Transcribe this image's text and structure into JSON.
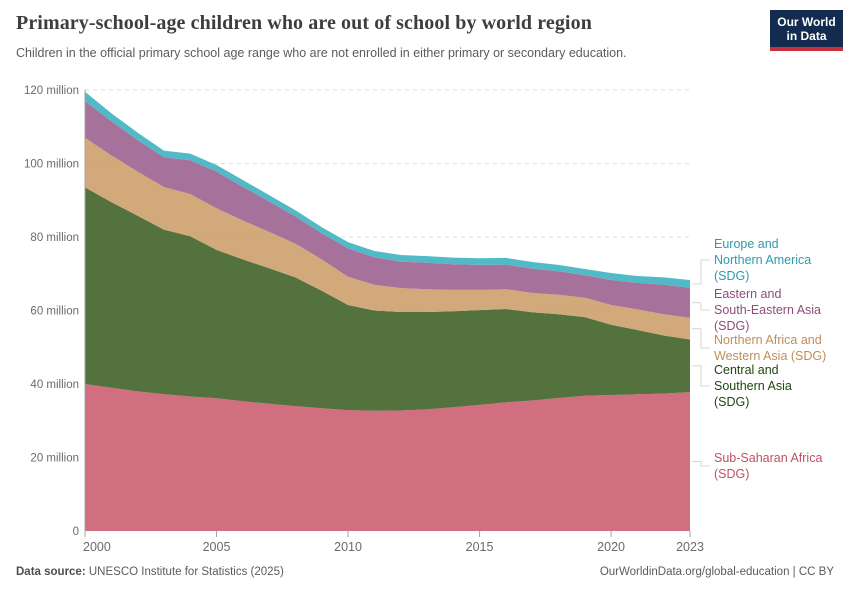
{
  "header": {
    "title": "Primary-school-age children who are out of school by world region",
    "subtitle": "Children in the official primary school age range who are not enrolled in either primary or secondary education."
  },
  "logo": {
    "line1": "Our World",
    "line2": "in Data",
    "bg_color": "#122B4E",
    "accent_color": "#C7313D"
  },
  "footer": {
    "source_label": "Data source:",
    "source_value": " UNESCO Institute for Statistics (2025)",
    "credit": "OurWorldinData.org/global-education | CC BY"
  },
  "chart_data": {
    "type": "area",
    "stacked": true,
    "title": "Primary-school-age children who are out of school by world region",
    "unit": "million",
    "x": [
      2000,
      2001,
      2002,
      2003,
      2004,
      2005,
      2006,
      2007,
      2008,
      2009,
      2010,
      2011,
      2012,
      2013,
      2014,
      2015,
      2016,
      2017,
      2018,
      2019,
      2020,
      2021,
      2022,
      2023
    ],
    "series": [
      {
        "name": "Sub-Saharan Africa (SDG)",
        "fill": "#CE6476",
        "label_color": "#C15065",
        "values": [
          40.0,
          39.0,
          38.0,
          37.2,
          36.6,
          36.1,
          35.3,
          34.6,
          34.0,
          33.4,
          32.9,
          32.7,
          32.8,
          33.1,
          33.7,
          34.3,
          35.0,
          35.5,
          36.2,
          36.8,
          37.0,
          37.2,
          37.4,
          37.8
        ]
      },
      {
        "name": "Central and Southern Asia (SDG)",
        "fill": "#47672F",
        "label_color": "#1D470F",
        "values": [
          53.5,
          50.5,
          47.8,
          44.8,
          43.6,
          40.4,
          38.6,
          36.9,
          35.0,
          32.0,
          28.6,
          27.3,
          26.8,
          26.5,
          26.1,
          25.8,
          25.4,
          24.0,
          22.8,
          21.4,
          19.1,
          17.5,
          15.8,
          14.3
        ]
      },
      {
        "name": "Northern Africa and Western Asia (SDG)",
        "fill": "#CEA371",
        "label_color": "#BE8E5A",
        "values": [
          13.5,
          12.7,
          12.0,
          11.6,
          11.5,
          11.3,
          10.6,
          9.9,
          9.2,
          8.5,
          7.7,
          7.0,
          6.5,
          6.2,
          5.8,
          5.5,
          5.4,
          5.3,
          5.3,
          5.3,
          5.4,
          5.6,
          5.8,
          5.9
        ]
      },
      {
        "name": "Eastern and South-Eastern Asia (SDG)",
        "fill": "#9F6793",
        "label_color": "#8E4D78",
        "values": [
          10.0,
          9.3,
          8.6,
          8.1,
          9.2,
          10.0,
          9.2,
          8.3,
          7.4,
          7.1,
          7.7,
          7.5,
          7.2,
          7.2,
          7.0,
          6.8,
          6.7,
          6.6,
          6.4,
          6.1,
          6.8,
          7.2,
          8.0,
          8.2
        ]
      },
      {
        "name": "Europe and Northern America (SDG)",
        "fill": "#45B4C3",
        "label_color": "#2D9CAD",
        "values": [
          2.5,
          2.2,
          2.0,
          1.8,
          1.8,
          1.8,
          1.8,
          1.7,
          1.7,
          1.7,
          1.7,
          1.7,
          1.8,
          1.8,
          1.8,
          1.8,
          1.8,
          1.8,
          1.7,
          1.7,
          1.9,
          1.9,
          2.0,
          2.1
        ]
      }
    ],
    "ylim": [
      0,
      120
    ],
    "y_ticks": [
      {
        "value": 0,
        "label": "0"
      },
      {
        "value": 20,
        "label": "20 million"
      },
      {
        "value": 40,
        "label": "40 million"
      },
      {
        "value": 60,
        "label": "60 million"
      },
      {
        "value": 80,
        "label": "80 million"
      },
      {
        "value": 100,
        "label": "100 million"
      },
      {
        "value": 120,
        "label": "120 million"
      }
    ],
    "x_ticks": [
      2000,
      2005,
      2010,
      2015,
      2020,
      2023
    ],
    "grid": true,
    "grid_color": "#dddddd",
    "axis_color": "#a3a3a3",
    "tick_label_color": "#6b6b6b",
    "legend_position": "right"
  },
  "legend": {
    "connector_color": "#d6d6d6",
    "entries": [
      {
        "name": "Europe and Northern America (SDG)",
        "lines": [
          "Europe and",
          "Northern America",
          "(SDG)"
        ]
      },
      {
        "name": "Eastern and South-Eastern Asia (SDG)",
        "lines": [
          "Eastern and",
          "South-Eastern Asia",
          "(SDG)"
        ]
      },
      {
        "name": "Northern Africa and Western Asia (SDG)",
        "lines": [
          "Northern Africa and",
          "Western Asia (SDG)"
        ]
      },
      {
        "name": "Central and Southern Asia (SDG)",
        "lines": [
          "Central and",
          "Southern Asia",
          "(SDG)"
        ]
      },
      {
        "name": "Sub-Saharan Africa (SDG)",
        "lines": [
          "Sub-Saharan Africa",
          "(SDG)"
        ]
      }
    ]
  }
}
